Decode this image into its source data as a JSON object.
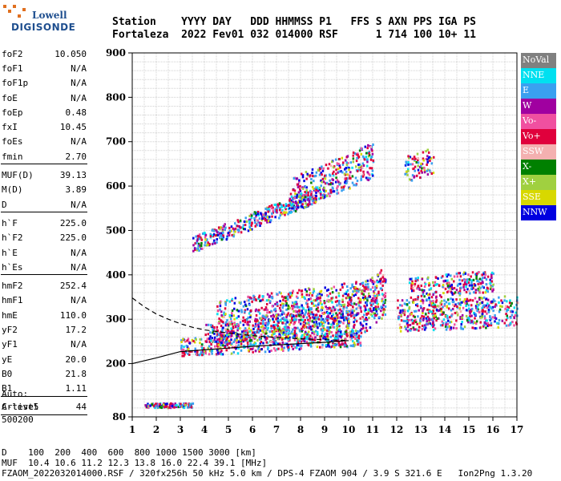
{
  "logo": {
    "line1": "Lowell",
    "line2": "DIGISONDE"
  },
  "header": {
    "labels": [
      "Station",
      "YYYY DAY",
      "DDD HHMMSS P1",
      "FFS S AXN PPS IGA PS"
    ],
    "station": "Fortaleza",
    "yyyy_day": "2022 Fev01",
    "ddd_time": "032 014000 RSF",
    "ffs": "1 714 100 10+ 11"
  },
  "params": [
    {
      "name": "foF2",
      "value": "10.050"
    },
    {
      "name": "foF1",
      "value": "N/A"
    },
    {
      "name": "foF1p",
      "value": "N/A"
    },
    {
      "name": "foE",
      "value": "N/A"
    },
    {
      "name": "foEp",
      "value": "0.48"
    },
    {
      "name": "fxI",
      "value": "10.45"
    },
    {
      "name": "foEs",
      "value": "N/A"
    },
    {
      "name": "fmin",
      "value": "2.70"
    },
    {
      "sep": true
    },
    {
      "name": "MUF(D)",
      "value": "39.13"
    },
    {
      "name": "M(D)",
      "value": "3.89"
    },
    {
      "name": "D",
      "value": "N/A"
    },
    {
      "sep": true
    },
    {
      "name": "h`F",
      "value": "225.0"
    },
    {
      "name": "h`F2",
      "value": "225.0"
    },
    {
      "name": "h`E",
      "value": "N/A"
    },
    {
      "name": "h`Es",
      "value": "N/A"
    },
    {
      "sep": true
    },
    {
      "name": "hmF2",
      "value": "252.4"
    },
    {
      "name": "hmF1",
      "value": "N/A"
    },
    {
      "name": "hmE",
      "value": "110.0"
    },
    {
      "name": "yF2",
      "value": "17.2"
    },
    {
      "name": "yF1",
      "value": "N/A"
    },
    {
      "name": "yE",
      "value": "20.0"
    },
    {
      "name": "B0",
      "value": "21.8"
    },
    {
      "name": "B1",
      "value": "1.11"
    },
    {
      "sep": true
    },
    {
      "name": "C-level",
      "value": "44"
    },
    {
      "sep": true
    }
  ],
  "auto": {
    "line1": "Auto:",
    "line2": "Artist5",
    "line3": "500200"
  },
  "legend": [
    {
      "label": "NoVal",
      "color": "#808080"
    },
    {
      "label": "NNE",
      "color": "#00e0f0"
    },
    {
      "label": "E",
      "color": "#3aa0f0"
    },
    {
      "label": "W",
      "color": "#a000a0"
    },
    {
      "label": "Vo-",
      "color": "#f050a0"
    },
    {
      "label": "Vo+",
      "color": "#e0003c"
    },
    {
      "label": "SSW",
      "color": "#f4b0b0"
    },
    {
      "label": "X-",
      "color": "#008000"
    },
    {
      "label": "X+",
      "color": "#a0d040"
    },
    {
      "label": "SSE",
      "color": "#d8d800"
    },
    {
      "label": "NNW",
      "color": "#0000e0"
    }
  ],
  "footer": {
    "d_line": "D    100  200  400  600  800 1000 1500 3000 [km]",
    "muf_line": "MUF  10.4 10.6 11.2 12.3 13.8 16.0 22.4 39.1 [MHz]",
    "info_line": "FZAOM_2022032014000.RSF / 320fx256h 50 kHz 5.0 km / DPS-4 FZAOM 904 / 3.9 S 321.6 E   Ion2Png 1.3.20"
  },
  "chart_data": {
    "type": "scatter",
    "title": "",
    "xlabel": "",
    "ylabel": "",
    "xlim": [
      1,
      17
    ],
    "ylim": [
      80,
      900
    ],
    "xticks": [
      1,
      2,
      3,
      4,
      5,
      6,
      7,
      8,
      9,
      10,
      11,
      12,
      13,
      14,
      15,
      16,
      17
    ],
    "yticks": [
      80,
      200,
      300,
      400,
      500,
      600,
      700,
      800,
      900
    ],
    "grid": true,
    "legend_position": "right",
    "trace_regions": [
      {
        "name": "F trace lower",
        "x": [
          3.0,
          10.5
        ],
        "y_center": [
          238,
          262
        ],
        "spread": 20
      },
      {
        "name": "F trace main",
        "x": [
          4.0,
          10.0
        ],
        "y_center": [
          265,
          310
        ],
        "spread": 28
      },
      {
        "name": "F diffuse",
        "x": [
          4.5,
          11.5
        ],
        "y_center": [
          300,
          350
        ],
        "spread": 45
      },
      {
        "name": "F2 high",
        "x": [
          9.8,
          11.5
        ],
        "y_center": [
          300,
          360
        ],
        "spread": 60
      },
      {
        "name": "Spread F",
        "x": [
          12.0,
          17.0
        ],
        "y_center": [
          310,
          320
        ],
        "spread": 35
      },
      {
        "name": "Spread F upper",
        "x": [
          12.5,
          16.0
        ],
        "y_center": [
          370,
          390
        ],
        "spread": 25
      },
      {
        "name": "Multi-hop",
        "x": [
          3.5,
          9.0
        ],
        "y_center": [
          470,
          590
        ],
        "spread": 18
      },
      {
        "name": "Multi-hop high",
        "x": [
          7.5,
          11.0
        ],
        "y_center": [
          580,
          660
        ],
        "spread": 40
      },
      {
        "name": "Es low",
        "x": [
          1.5,
          3.5
        ],
        "y_center": [
          108,
          108
        ],
        "spread": 5
      },
      {
        "name": "Es top",
        "x": [
          12.3,
          13.5
        ],
        "y_center": [
          640,
          660
        ],
        "spread": 30
      }
    ],
    "profile_curves": [
      {
        "name": "true height lower",
        "x": [
          1,
          2,
          3,
          4,
          5,
          6,
          7,
          8,
          9,
          10
        ],
        "y": [
          200,
          213,
          227,
          231,
          235,
          239,
          242,
          245,
          248,
          252
        ]
      },
      {
        "name": "true height dashed",
        "x": [
          1,
          1.5,
          2,
          2.5,
          3,
          3.5,
          4,
          5,
          6,
          7,
          8,
          9,
          10
        ],
        "y": [
          348,
          328,
          312,
          300,
          290,
          282,
          276,
          269,
          263,
          259,
          256,
          254,
          252
        ]
      }
    ]
  }
}
